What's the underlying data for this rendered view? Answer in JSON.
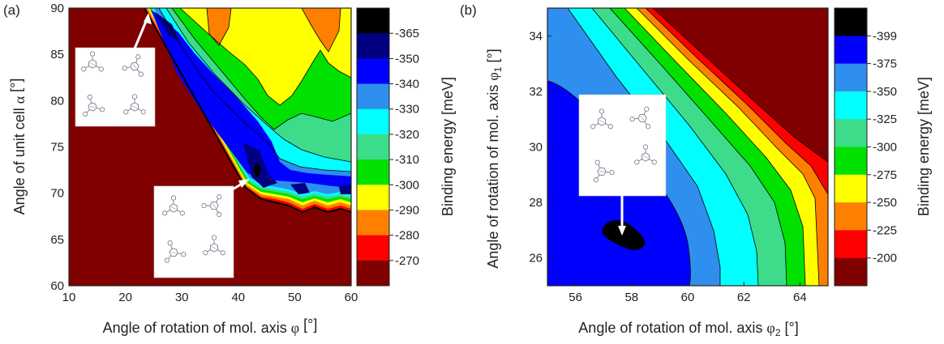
{
  "chart_data": [
    {
      "type": "heatmap",
      "panel_label": "(a)",
      "xlabel_main": "Angle of rotation of mol. axis ",
      "xlabel_sym": "φ",
      "xlabel_sub": "",
      "xlabel_tail": " [°]",
      "ylabel_main": "Angle of unit cell ",
      "ylabel_sym": "α",
      "ylabel_sub": "",
      "ylabel_tail": " [°]",
      "xlim": [
        10,
        60
      ],
      "ylim": [
        60,
        90
      ],
      "xticks": [
        10,
        20,
        30,
        40,
        50,
        60
      ],
      "yticks": [
        60,
        65,
        70,
        75,
        80,
        85,
        90
      ],
      "colorbar_label": "Binding energy [meV]",
      "levels": [
        {
          "label": "-365",
          "color": "#000000"
        },
        {
          "label": "-350",
          "color": "#000080"
        },
        {
          "label": "-340",
          "color": "#0000ff"
        },
        {
          "label": "-330",
          "color": "#2e8fee"
        },
        {
          "label": "-320",
          "color": "#00ffff"
        },
        {
          "label": "-310",
          "color": "#3ddc8a"
        },
        {
          "label": "-300",
          "color": "#00e100"
        },
        {
          "label": "-290",
          "color": "#ffff00"
        },
        {
          "label": "-280",
          "color": "#ff8000"
        },
        {
          "label": "-270",
          "color": "#ff0000"
        },
        {
          "label": "",
          "color": "#800000"
        }
      ],
      "minima": [
        {
          "x": 24.5,
          "y": 89.8
        },
        {
          "x": 42,
          "y": 70.3
        },
        {
          "x": 50.5,
          "y": 70.3
        }
      ]
    },
    {
      "type": "heatmap",
      "panel_label": "(b)",
      "xlabel_main": "Angle of rotation of mol. axis ",
      "xlabel_sym": "φ",
      "xlabel_sub": "2",
      "xlabel_tail": " [°]",
      "ylabel_main": "Angle of rotation of mol. axis ",
      "ylabel_sym": "φ",
      "ylabel_sub": "1",
      "ylabel_tail": " [°]",
      "xlim": [
        55,
        65
      ],
      "ylim": [
        25,
        35
      ],
      "xticks": [
        56,
        58,
        60,
        62,
        64
      ],
      "yticks": [
        26,
        28,
        30,
        32,
        34
      ],
      "colorbar_label": "Binding energy [meV]",
      "levels": [
        {
          "label": "-399",
          "color": "#000000"
        },
        {
          "label": "-375",
          "color": "#0000ff"
        },
        {
          "label": "-350",
          "color": "#2e8fee"
        },
        {
          "label": "-325",
          "color": "#00ffff"
        },
        {
          "label": "-300",
          "color": "#3ddc8a"
        },
        {
          "label": "-275",
          "color": "#00e100"
        },
        {
          "label": "-250",
          "color": "#ffff00"
        },
        {
          "label": "-225",
          "color": "#ff8000"
        },
        {
          "label": "-200",
          "color": "#ff0000"
        },
        {
          "label": "",
          "color": "#800000"
        }
      ],
      "minimum": {
        "x": 57.6,
        "y": 26.7
      }
    }
  ]
}
